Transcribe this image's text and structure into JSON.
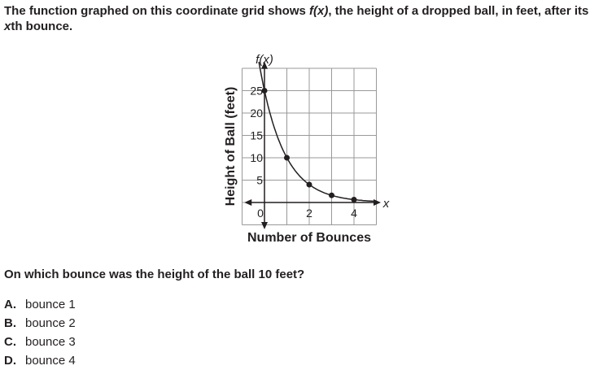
{
  "question": {
    "stem_parts": [
      "The function graphed on this coordinate grid shows ",
      "f(x)",
      ", the height of a dropped ball, in feet, after its ",
      "x",
      "th bounce."
    ],
    "prompt": "On which bounce was the height of the ball 10 feet?",
    "choices": [
      {
        "letter": "A.",
        "text": "bounce 1"
      },
      {
        "letter": "B.",
        "text": "bounce 2"
      },
      {
        "letter": "C.",
        "text": "bounce 3"
      },
      {
        "letter": "D.",
        "text": "bounce 4"
      }
    ]
  },
  "chart_data": {
    "type": "scatter",
    "xlabel": "Number of Bounces",
    "ylabel": "Height of Ball (feet)",
    "x_axis_name": "x",
    "y_axis_name": "f(x)",
    "xlim": [
      -1,
      5
    ],
    "ylim": [
      -5,
      30
    ],
    "grid": true,
    "x_tick_labels": [
      "0",
      "2",
      "4"
    ],
    "y_tick_labels": [
      "5",
      "10",
      "15",
      "20",
      "25"
    ],
    "points": [
      {
        "x": 0,
        "y": 25
      },
      {
        "x": 1,
        "y": 10
      },
      {
        "x": 2,
        "y": 4
      },
      {
        "x": 3,
        "y": 1.6
      },
      {
        "x": 4,
        "y": 0.64
      }
    ],
    "curve": "exponential decay f(x)=25(0.4)^x",
    "color": "#231f20"
  }
}
